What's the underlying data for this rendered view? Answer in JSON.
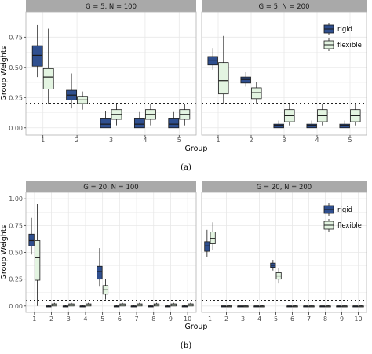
{
  "colors": {
    "rigid": "#2f4f8f",
    "flexible": "#e3f4e1",
    "strip_bg": "#a9a9a9",
    "grid": "#e8e8e8",
    "panel_border": "#b3b3b3",
    "reference_line": "#000000"
  },
  "chart_data": [
    {
      "type": "boxplot",
      "caption": "(a)",
      "ylabel": "Group Weights",
      "xlabel": "Group",
      "ylim": [
        -0.06,
        0.96
      ],
      "yticks": [
        0.0,
        0.25,
        0.5,
        0.75
      ],
      "ytick_labels": [
        "0.00",
        "0.25",
        "0.50",
        "0.75"
      ],
      "reference_line": 0.2,
      "legend": {
        "position": "top-right (inside right panel)",
        "entries": [
          "rigid",
          "flexible"
        ]
      },
      "panels": [
        {
          "strip": "G = 5, N = 100",
          "categories": [
            "1",
            "2",
            "3",
            "4",
            "5"
          ],
          "series": [
            {
              "name": "rigid",
              "boxes": [
                {
                  "min": 0.42,
                  "q1": 0.51,
                  "median": 0.6,
                  "q3": 0.68,
                  "max": 0.85
                },
                {
                  "min": 0.16,
                  "q1": 0.23,
                  "median": 0.27,
                  "q3": 0.31,
                  "max": 0.45
                },
                {
                  "min": 0.0,
                  "q1": 0.0,
                  "median": 0.03,
                  "q3": 0.08,
                  "max": 0.14
                },
                {
                  "min": 0.0,
                  "q1": 0.0,
                  "median": 0.03,
                  "q3": 0.08,
                  "max": 0.13
                },
                {
                  "min": 0.0,
                  "q1": 0.0,
                  "median": 0.03,
                  "q3": 0.08,
                  "max": 0.13
                }
              ]
            },
            {
              "name": "flexible",
              "boxes": [
                {
                  "min": 0.2,
                  "q1": 0.32,
                  "median": 0.42,
                  "q3": 0.49,
                  "max": 0.82
                },
                {
                  "min": 0.15,
                  "q1": 0.2,
                  "median": 0.23,
                  "q3": 0.26,
                  "max": 0.3
                },
                {
                  "min": 0.02,
                  "q1": 0.07,
                  "median": 0.11,
                  "q3": 0.15,
                  "max": 0.2
                },
                {
                  "min": 0.02,
                  "q1": 0.07,
                  "median": 0.11,
                  "q3": 0.15,
                  "max": 0.2
                },
                {
                  "min": 0.02,
                  "q1": 0.07,
                  "median": 0.11,
                  "q3": 0.15,
                  "max": 0.2
                }
              ]
            }
          ]
        },
        {
          "strip": "G = 5, N = 200",
          "categories": [
            "1",
            "2",
            "3",
            "4",
            "5"
          ],
          "series": [
            {
              "name": "rigid",
              "boxes": [
                {
                  "min": 0.48,
                  "q1": 0.52,
                  "median": 0.56,
                  "q3": 0.59,
                  "max": 0.66
                },
                {
                  "min": 0.34,
                  "q1": 0.37,
                  "median": 0.4,
                  "q3": 0.42,
                  "max": 0.46
                },
                {
                  "min": 0.0,
                  "q1": 0.0,
                  "median": 0.02,
                  "q3": 0.03,
                  "max": 0.06
                },
                {
                  "min": 0.0,
                  "q1": 0.0,
                  "median": 0.02,
                  "q3": 0.03,
                  "max": 0.06
                },
                {
                  "min": 0.0,
                  "q1": 0.0,
                  "median": 0.02,
                  "q3": 0.03,
                  "max": 0.06
                }
              ]
            },
            {
              "name": "flexible",
              "boxes": [
                {
                  "min": 0.2,
                  "q1": 0.28,
                  "median": 0.39,
                  "q3": 0.54,
                  "max": 0.76
                },
                {
                  "min": 0.2,
                  "q1": 0.24,
                  "median": 0.29,
                  "q3": 0.33,
                  "max": 0.38
                },
                {
                  "min": 0.02,
                  "q1": 0.05,
                  "median": 0.1,
                  "q3": 0.15,
                  "max": 0.2
                },
                {
                  "min": 0.02,
                  "q1": 0.05,
                  "median": 0.1,
                  "q3": 0.15,
                  "max": 0.2
                },
                {
                  "min": 0.02,
                  "q1": 0.05,
                  "median": 0.1,
                  "q3": 0.15,
                  "max": 0.2
                }
              ]
            }
          ]
        }
      ]
    },
    {
      "type": "boxplot",
      "caption": "(b)",
      "ylabel": "Group Weights",
      "xlabel": "Group",
      "ylim": [
        -0.06,
        1.06
      ],
      "yticks": [
        0.0,
        0.25,
        0.5,
        0.75,
        1.0
      ],
      "ytick_labels": [
        "0.00",
        "0.25",
        "0.50",
        "0.75",
        "1.00"
      ],
      "reference_line": 0.05,
      "legend": {
        "position": "top-right (inside right panel)",
        "entries": [
          "rigid",
          "flexible"
        ]
      },
      "panels": [
        {
          "strip": "G = 20, N = 100",
          "categories": [
            "1",
            "2",
            "3",
            "4",
            "5",
            "6",
            "7",
            "8",
            "9",
            "10"
          ],
          "series": [
            {
              "name": "rigid",
              "boxes": [
                {
                  "min": 0.48,
                  "q1": 0.56,
                  "median": 0.61,
                  "q3": 0.67,
                  "max": 0.82
                },
                {
                  "min": 0.0,
                  "q1": 0.0,
                  "median": 0.0,
                  "q3": 0.0,
                  "max": 0.01
                },
                {
                  "min": 0.0,
                  "q1": 0.0,
                  "median": 0.0,
                  "q3": 0.0,
                  "max": 0.01
                },
                {
                  "min": 0.0,
                  "q1": 0.0,
                  "median": 0.0,
                  "q3": 0.0,
                  "max": 0.01
                },
                {
                  "min": 0.18,
                  "q1": 0.25,
                  "median": 0.32,
                  "q3": 0.37,
                  "max": 0.54
                },
                {
                  "min": 0.0,
                  "q1": 0.0,
                  "median": 0.0,
                  "q3": 0.0,
                  "max": 0.01
                },
                {
                  "min": 0.0,
                  "q1": 0.0,
                  "median": 0.0,
                  "q3": 0.0,
                  "max": 0.01
                },
                {
                  "min": 0.0,
                  "q1": 0.0,
                  "median": 0.0,
                  "q3": 0.0,
                  "max": 0.01
                },
                {
                  "min": 0.0,
                  "q1": 0.0,
                  "median": 0.0,
                  "q3": 0.0,
                  "max": 0.01
                },
                {
                  "min": 0.0,
                  "q1": 0.0,
                  "median": 0.0,
                  "q3": 0.0,
                  "max": 0.01
                }
              ]
            },
            {
              "name": "flexible",
              "boxes": [
                {
                  "min": 0.0,
                  "q1": 0.24,
                  "median": 0.45,
                  "q3": 0.61,
                  "max": 0.95
                },
                {
                  "min": 0.0,
                  "q1": 0.0,
                  "median": 0.01,
                  "q3": 0.02,
                  "max": 0.03
                },
                {
                  "min": 0.0,
                  "q1": 0.0,
                  "median": 0.01,
                  "q3": 0.02,
                  "max": 0.03
                },
                {
                  "min": 0.0,
                  "q1": 0.0,
                  "median": 0.01,
                  "q3": 0.02,
                  "max": 0.03
                },
                {
                  "min": 0.06,
                  "q1": 0.11,
                  "median": 0.15,
                  "q3": 0.19,
                  "max": 0.25
                },
                {
                  "min": 0.0,
                  "q1": 0.0,
                  "median": 0.01,
                  "q3": 0.02,
                  "max": 0.03
                },
                {
                  "min": 0.0,
                  "q1": 0.0,
                  "median": 0.01,
                  "q3": 0.02,
                  "max": 0.03
                },
                {
                  "min": 0.0,
                  "q1": 0.0,
                  "median": 0.01,
                  "q3": 0.02,
                  "max": 0.03
                },
                {
                  "min": 0.0,
                  "q1": 0.0,
                  "median": 0.01,
                  "q3": 0.02,
                  "max": 0.03
                },
                {
                  "min": 0.0,
                  "q1": 0.0,
                  "median": 0.01,
                  "q3": 0.02,
                  "max": 0.03
                }
              ]
            }
          ]
        },
        {
          "strip": "G = 20, N = 200",
          "categories": [
            "1",
            "2",
            "3",
            "4",
            "5",
            "6",
            "7",
            "8",
            "9",
            "10"
          ],
          "series": [
            {
              "name": "rigid",
              "boxes": [
                {
                  "min": 0.46,
                  "q1": 0.51,
                  "median": 0.56,
                  "q3": 0.6,
                  "max": 0.71
                },
                {
                  "min": 0.0,
                  "q1": 0.0,
                  "median": 0.0,
                  "q3": 0.0,
                  "max": 0.0
                },
                {
                  "min": 0.0,
                  "q1": 0.0,
                  "median": 0.0,
                  "q3": 0.0,
                  "max": 0.0
                },
                {
                  "min": 0.0,
                  "q1": 0.0,
                  "median": 0.0,
                  "q3": 0.0,
                  "max": 0.0
                },
                {
                  "min": 0.33,
                  "q1": 0.36,
                  "median": 0.38,
                  "q3": 0.4,
                  "max": 0.43
                },
                {
                  "min": 0.0,
                  "q1": 0.0,
                  "median": 0.0,
                  "q3": 0.0,
                  "max": 0.0
                },
                {
                  "min": 0.0,
                  "q1": 0.0,
                  "median": 0.0,
                  "q3": 0.0,
                  "max": 0.0
                },
                {
                  "min": 0.0,
                  "q1": 0.0,
                  "median": 0.0,
                  "q3": 0.0,
                  "max": 0.0
                },
                {
                  "min": 0.0,
                  "q1": 0.0,
                  "median": 0.0,
                  "q3": 0.0,
                  "max": 0.0
                },
                {
                  "min": 0.0,
                  "q1": 0.0,
                  "median": 0.0,
                  "q3": 0.0,
                  "max": 0.0
                }
              ]
            },
            {
              "name": "flexible",
              "boxes": [
                {
                  "min": 0.52,
                  "q1": 0.58,
                  "median": 0.63,
                  "q3": 0.69,
                  "max": 0.78
                },
                {
                  "min": 0.0,
                  "q1": 0.0,
                  "median": 0.0,
                  "q3": 0.0,
                  "max": 0.01
                },
                {
                  "min": 0.0,
                  "q1": 0.0,
                  "median": 0.0,
                  "q3": 0.0,
                  "max": 0.01
                },
                {
                  "min": 0.0,
                  "q1": 0.0,
                  "median": 0.0,
                  "q3": 0.0,
                  "max": 0.01
                },
                {
                  "min": 0.21,
                  "q1": 0.25,
                  "median": 0.28,
                  "q3": 0.31,
                  "max": 0.35
                },
                {
                  "min": 0.0,
                  "q1": 0.0,
                  "median": 0.0,
                  "q3": 0.0,
                  "max": 0.01
                },
                {
                  "min": 0.0,
                  "q1": 0.0,
                  "median": 0.0,
                  "q3": 0.0,
                  "max": 0.01
                },
                {
                  "min": 0.0,
                  "q1": 0.0,
                  "median": 0.0,
                  "q3": 0.0,
                  "max": 0.01
                },
                {
                  "min": 0.0,
                  "q1": 0.0,
                  "median": 0.0,
                  "q3": 0.0,
                  "max": 0.01
                },
                {
                  "min": 0.0,
                  "q1": 0.0,
                  "median": 0.0,
                  "q3": 0.0,
                  "max": 0.01
                }
              ]
            }
          ]
        }
      ]
    }
  ]
}
